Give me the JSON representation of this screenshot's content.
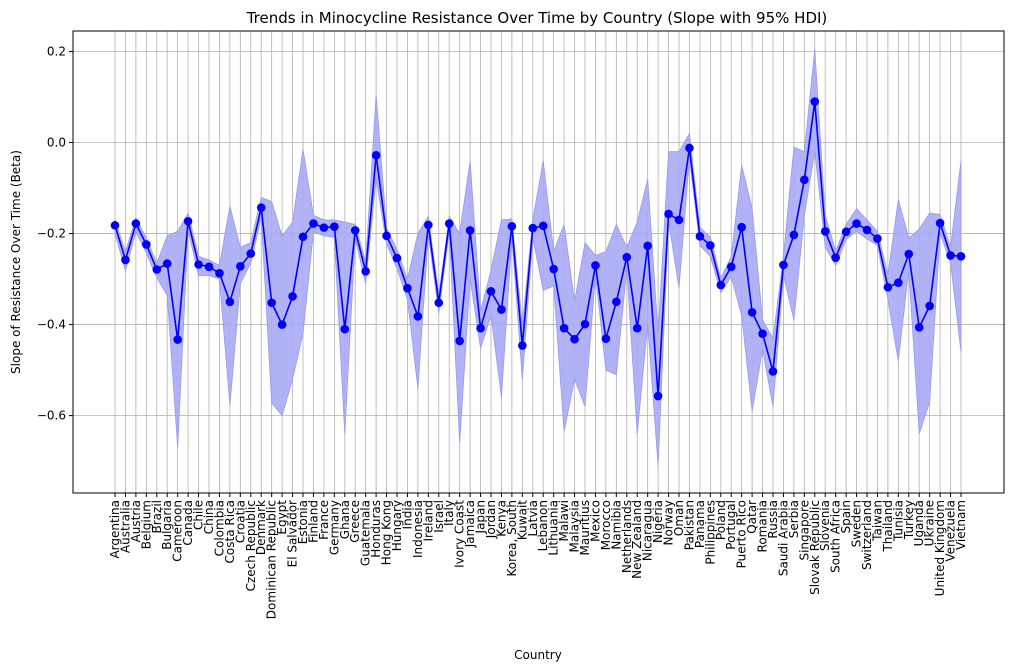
{
  "chart_data": {
    "type": "line",
    "title": "Trends in Minocycline Resistance Over Time by Country (Slope with 95% HDI)",
    "xlabel": "Country",
    "ylabel": "Slope of Resistance Over Time (Beta)",
    "ylim": [
      -0.77,
      0.245
    ],
    "yticks": [
      0.2,
      0.0,
      -0.2,
      -0.4,
      -0.6
    ],
    "ytick_labels": [
      "0.2",
      "0.0",
      "−0.2",
      "−0.4",
      "−0.6"
    ],
    "grid": true,
    "colors": {
      "line": "#0000ff",
      "band": "#aaaaf5",
      "grid": "#b0b0b0"
    },
    "categories": [
      "Argentina",
      "Australia",
      "Austria",
      "Belgium",
      "Brazil",
      "Bulgaria",
      "Cameroon",
      "Canada",
      "Chile",
      "China",
      "Colombia",
      "Costa Rica",
      "Croatia",
      "Czech Republic",
      "Denmark",
      "Dominican Republic",
      "Egypt",
      "El Salvador",
      "Estonia",
      "Finland",
      "France",
      "Germany",
      "Ghana",
      "Greece",
      "Guatemala",
      "Honduras",
      "Hong Kong",
      "Hungary",
      "India",
      "Indonesia",
      "Ireland",
      "Israel",
      "Italy",
      "Ivory Coast",
      "Jamaica",
      "Japan",
      "Jordan",
      "Kenya",
      "Korea, South",
      "Kuwait",
      "Latvia",
      "Lebanon",
      "Lithuania",
      "Malawi",
      "Malaysia",
      "Mauritius",
      "Mexico",
      "Morocco",
      "Namibia",
      "Netherlands",
      "New Zealand",
      "Nicaragua",
      "Nigeria",
      "Norway",
      "Oman",
      "Pakistan",
      "Panama",
      "Philippines",
      "Poland",
      "Portugal",
      "Puerto Rico",
      "Qatar",
      "Romania",
      "Russia",
      "Saudi Arabia",
      "Serbia",
      "Singapore",
      "Slovak Republic",
      "Slovenia",
      "South Africa",
      "Spain",
      "Sweden",
      "Switzerland",
      "Taiwan",
      "Thailand",
      "Tunisia",
      "Turkey",
      "Uganda",
      "Ukraine",
      "United Kingdom",
      "Venezuela",
      "Vietnam"
    ],
    "series": [
      {
        "values": [
          -0.182,
          -0.258,
          -0.178,
          -0.224,
          -0.279,
          -0.266,
          -0.433,
          -0.173,
          -0.268,
          -0.273,
          -0.287,
          -0.35,
          -0.272,
          -0.244,
          -0.143,
          -0.352,
          -0.4,
          -0.338,
          -0.207,
          -0.178,
          -0.187,
          -0.185,
          -0.41,
          -0.193,
          -0.283,
          -0.028,
          -0.205,
          -0.254,
          -0.32,
          -0.382,
          -0.181,
          -0.352,
          -0.178,
          -0.436,
          -0.193,
          -0.408,
          -0.327,
          -0.367,
          -0.184,
          -0.446,
          -0.188,
          -0.183,
          -0.278,
          -0.408,
          -0.432,
          -0.399,
          -0.27,
          -0.431,
          -0.35,
          -0.252,
          -0.408,
          -0.227,
          -0.557,
          -0.157,
          -0.17,
          -0.012,
          -0.206,
          -0.226,
          -0.313,
          -0.273,
          -0.186,
          -0.373,
          -0.42,
          -0.503,
          -0.269,
          -0.203,
          -0.082,
          0.09,
          -0.195,
          -0.253,
          -0.196,
          -0.178,
          -0.192,
          -0.211,
          -0.318,
          -0.308,
          -0.245,
          -0.406,
          -0.359,
          -0.177,
          -0.248,
          -0.25
        ],
        "hdi_lower": [
          -0.2,
          -0.282,
          -0.196,
          -0.243,
          -0.297,
          -0.336,
          -0.67,
          -0.193,
          -0.293,
          -0.292,
          -0.3,
          -0.578,
          -0.31,
          -0.265,
          -0.165,
          -0.572,
          -0.6,
          -0.52,
          -0.42,
          -0.196,
          -0.205,
          -0.208,
          -0.64,
          -0.211,
          -0.31,
          -0.08,
          -0.223,
          -0.277,
          -0.345,
          -0.54,
          -0.203,
          -0.375,
          -0.196,
          -0.66,
          -0.3,
          -0.452,
          -0.38,
          -0.56,
          -0.208,
          -0.52,
          -0.21,
          -0.325,
          -0.315,
          -0.635,
          -0.52,
          -0.58,
          -0.292,
          -0.5,
          -0.51,
          -0.278,
          -0.64,
          -0.4,
          -0.71,
          -0.173,
          -0.32,
          -0.035,
          -0.226,
          -0.25,
          -0.33,
          -0.295,
          -0.38,
          -0.59,
          -0.455,
          -0.58,
          -0.292,
          -0.39,
          -0.16,
          -0.02,
          -0.23,
          -0.27,
          -0.213,
          -0.195,
          -0.212,
          -0.226,
          -0.345,
          -0.48,
          -0.28,
          -0.64,
          -0.57,
          -0.2,
          -0.265,
          -0.46
        ],
        "hdi_upper": [
          -0.17,
          -0.24,
          -0.165,
          -0.21,
          -0.265,
          -0.205,
          -0.195,
          -0.155,
          -0.25,
          -0.258,
          -0.27,
          -0.14,
          -0.23,
          -0.22,
          -0.12,
          -0.13,
          -0.205,
          -0.175,
          -0.015,
          -0.16,
          -0.17,
          -0.17,
          -0.175,
          -0.18,
          -0.262,
          0.105,
          -0.188,
          -0.235,
          -0.3,
          -0.2,
          -0.162,
          -0.335,
          -0.162,
          -0.2,
          -0.04,
          -0.37,
          -0.28,
          -0.17,
          -0.168,
          -0.4,
          -0.17,
          -0.04,
          -0.24,
          -0.18,
          -0.35,
          -0.22,
          -0.248,
          -0.24,
          -0.18,
          -0.23,
          -0.175,
          -0.08,
          -0.42,
          -0.02,
          -0.02,
          0.02,
          -0.186,
          -0.208,
          -0.298,
          -0.251,
          -0.05,
          -0.145,
          -0.39,
          -0.43,
          -0.25,
          -0.01,
          -0.02,
          0.205,
          -0.16,
          -0.238,
          -0.18,
          -0.145,
          -0.17,
          -0.195,
          -0.29,
          -0.125,
          -0.21,
          -0.19,
          -0.155,
          -0.158,
          -0.23,
          -0.04
        ]
      }
    ]
  }
}
